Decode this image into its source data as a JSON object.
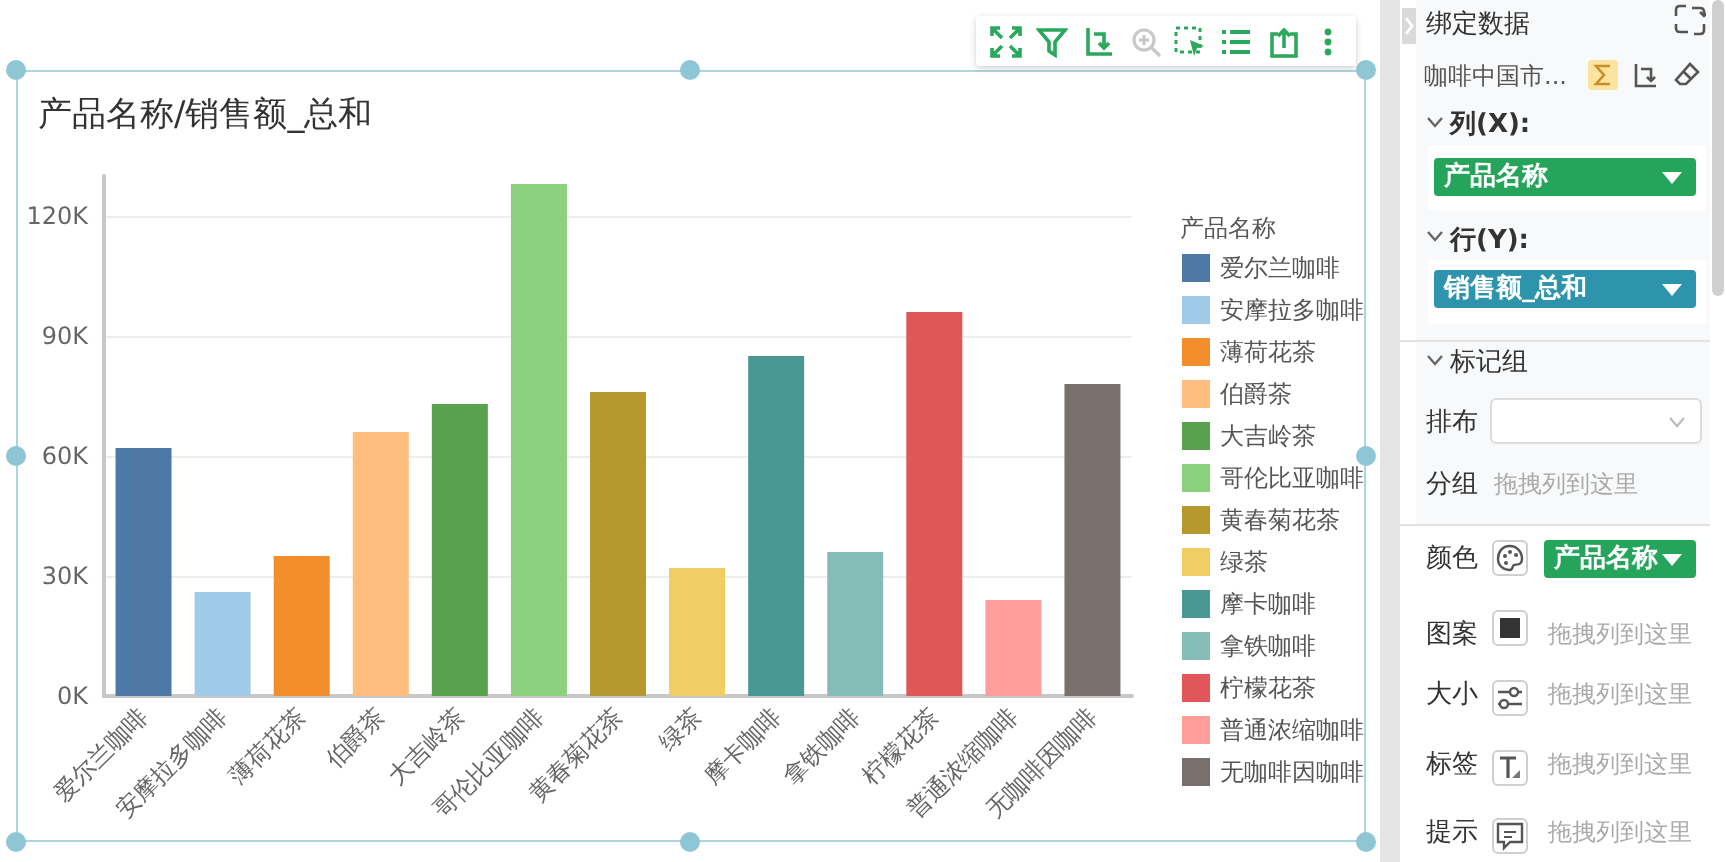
{
  "chart_data": {
    "type": "bar",
    "title": "产品名称/销售额_总和",
    "legend_title": "产品名称",
    "categories": [
      "爱尔兰咖啡",
      "安摩拉多咖啡",
      "薄荷花茶",
      "伯爵茶",
      "大吉岭茶",
      "哥伦比亚咖啡",
      "黄春菊花茶",
      "绿茶",
      "摩卡咖啡",
      "拿铁咖啡",
      "柠檬花茶",
      "普通浓缩咖啡",
      "无咖啡因咖啡"
    ],
    "series": [
      {
        "name": "爱尔兰咖啡",
        "color": "#4e79a7",
        "values": [
          62000,
          null,
          null,
          null,
          null,
          null,
          null,
          null,
          null,
          null,
          null,
          null,
          null
        ]
      },
      {
        "name": "安摩拉多咖啡",
        "color": "#a0cbe8",
        "values": [
          null,
          26000,
          null,
          null,
          null,
          null,
          null,
          null,
          null,
          null,
          null,
          null,
          null
        ]
      },
      {
        "name": "薄荷花茶",
        "color": "#f28e2b",
        "values": [
          null,
          null,
          35000,
          null,
          null,
          null,
          null,
          null,
          null,
          null,
          null,
          null,
          null
        ]
      },
      {
        "name": "伯爵茶",
        "color": "#ffbe7d",
        "values": [
          null,
          null,
          null,
          66000,
          null,
          null,
          null,
          null,
          null,
          null,
          null,
          null,
          null
        ]
      },
      {
        "name": "大吉岭茶",
        "color": "#59a14f",
        "values": [
          null,
          null,
          null,
          null,
          73000,
          null,
          null,
          null,
          null,
          null,
          null,
          null,
          null
        ]
      },
      {
        "name": "哥伦比亚咖啡",
        "color": "#8cd17d",
        "values": [
          null,
          null,
          null,
          null,
          null,
          128000,
          null,
          null,
          null,
          null,
          null,
          null,
          null
        ]
      },
      {
        "name": "黄春菊花茶",
        "color": "#b6992d",
        "values": [
          null,
          null,
          null,
          null,
          null,
          null,
          76000,
          null,
          null,
          null,
          null,
          null,
          null
        ]
      },
      {
        "name": "绿茶",
        "color": "#f1ce63",
        "values": [
          null,
          null,
          null,
          null,
          null,
          null,
          null,
          32000,
          null,
          null,
          null,
          null,
          null
        ]
      },
      {
        "name": "摩卡咖啡",
        "color": "#499894",
        "values": [
          null,
          null,
          null,
          null,
          null,
          null,
          null,
          null,
          85000,
          null,
          null,
          null,
          null
        ]
      },
      {
        "name": "拿铁咖啡",
        "color": "#86bcb6",
        "values": [
          null,
          null,
          null,
          null,
          null,
          null,
          null,
          null,
          null,
          36000,
          null,
          null,
          null
        ]
      },
      {
        "name": "柠檬花茶",
        "color": "#e15759",
        "values": [
          null,
          null,
          null,
          null,
          null,
          null,
          null,
          null,
          null,
          null,
          96000,
          null,
          null
        ]
      },
      {
        "name": "普通浓缩咖啡",
        "color": "#ff9d9a",
        "values": [
          null,
          null,
          null,
          null,
          null,
          null,
          null,
          null,
          null,
          null,
          null,
          24000,
          null
        ]
      },
      {
        "name": "无咖啡因咖啡",
        "color": "#79706e",
        "values": [
          null,
          null,
          null,
          null,
          null,
          null,
          null,
          null,
          null,
          null,
          null,
          null,
          78000
        ]
      }
    ],
    "ylim": [
      0,
      130000
    ],
    "yticks": [
      {
        "value": 0,
        "label": "0K"
      },
      {
        "value": 30000,
        "label": "30K"
      },
      {
        "value": 60000,
        "label": "60K"
      },
      {
        "value": 90000,
        "label": "90K"
      },
      {
        "value": 120000,
        "label": "120K"
      }
    ],
    "grid": "y",
    "legend": "right",
    "annotations": [
      "绑定数据",
      "咖啡中国市...",
      "列(X):",
      "产品名称",
      "行(Y):",
      "销售额_总和",
      "标记组",
      "排布",
      "分组",
      "拖拽列到这里",
      "颜色",
      "产品名称",
      "图案",
      "拖拽列到这里",
      "大小",
      "拖拽列到这里",
      "标签",
      "拖拽列到这里",
      "提示",
      "拖拽列到这里"
    ]
  }
}
